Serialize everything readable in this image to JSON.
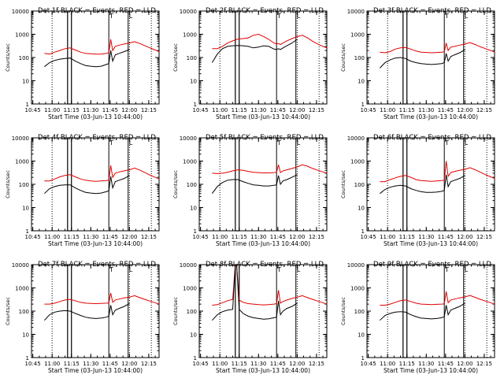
{
  "colors": {
    "events": "#000000",
    "lld": "#e00000",
    "axis": "#000000"
  },
  "chart_data": {
    "type": "line",
    "layout": "3x3 grid",
    "shared": {
      "xlabel": "Start Time (03-Jun-13 10:44:00)",
      "ylabel": "Counts/sec",
      "x_ticks": [
        "10:45",
        "11:00",
        "11:15",
        "11:30",
        "11:45",
        "12:00",
        "12:15"
      ],
      "x_tick_minutes": [
        1,
        16,
        31,
        46,
        61,
        76,
        91
      ],
      "xlim_minutes": [
        0,
        99
      ],
      "y_ticks": [
        "1",
        "10",
        "100",
        "1000",
        "10000"
      ],
      "y_scale": "log",
      "ylim": [
        1,
        10000
      ],
      "series": [
        {
          "name": "Events",
          "color": "black"
        },
        {
          "name": "LLD",
          "color": "red"
        }
      ],
      "markers": {
        "dotted_lines_minutes": [
          16,
          76,
          93
        ],
        "solid_box_minutes": [
          28,
          31
        ],
        "solid_lines_minutes": [
          60,
          75
        ],
        "flags": [
          {
            "label": "T",
            "minute": 60
          },
          {
            "label": "L",
            "minute": 75
          }
        ]
      }
    },
    "panels": [
      {
        "title": "Det 1f BLACK = Events, RED = LLD",
        "x_minutes": [
          10,
          14,
          18,
          22,
          26,
          30,
          34,
          38,
          42,
          46,
          50,
          54,
          58,
          60,
          61.5,
          63,
          65,
          68,
          72,
          76,
          80,
          84,
          88,
          92,
          96,
          99
        ],
        "events": [
          40,
          60,
          75,
          85,
          90,
          95,
          70,
          55,
          45,
          42,
          40,
          42,
          50,
          55,
          200,
          70,
          130,
          150,
          180,
          220,
          null,
          null,
          null,
          null,
          null,
          null
        ],
        "lld": [
          150,
          140,
          170,
          200,
          240,
          260,
          210,
          170,
          150,
          145,
          140,
          140,
          150,
          160,
          600,
          200,
          300,
          340,
          380,
          420,
          480,
          400,
          320,
          260,
          210,
          180
        ]
      },
      {
        "title": "Det 2f BLACK = Events, RED = LLD",
        "x_minutes": [
          10,
          14,
          18,
          22,
          26,
          30,
          34,
          38,
          42,
          46,
          50,
          54,
          58,
          60,
          61.5,
          63,
          65,
          68,
          72,
          76,
          80,
          84,
          88,
          92,
          96,
          99
        ],
        "events": [
          60,
          140,
          240,
          300,
          320,
          330,
          320,
          300,
          260,
          280,
          320,
          300,
          230,
          220,
          240,
          220,
          260,
          320,
          420,
          600,
          null,
          null,
          null,
          null,
          null,
          null
        ],
        "lld": [
          240,
          240,
          300,
          420,
          520,
          620,
          650,
          700,
          900,
          1000,
          800,
          600,
          420,
          380,
          400,
          360,
          420,
          520,
          650,
          800,
          900,
          700,
          500,
          380,
          300,
          260
        ]
      },
      {
        "title": "Det 3f BLACK = Events, RED = LLD",
        "x_minutes": [
          10,
          14,
          18,
          22,
          26,
          30,
          34,
          38,
          42,
          46,
          50,
          54,
          58,
          60,
          61.5,
          63,
          65,
          68,
          72,
          76,
          80,
          84,
          88,
          92,
          96,
          99
        ],
        "events": [
          35,
          60,
          80,
          95,
          100,
          90,
          70,
          60,
          55,
          52,
          50,
          52,
          55,
          60,
          150,
          70,
          110,
          130,
          160,
          220,
          null,
          null,
          null,
          null,
          null,
          null
        ],
        "lld": [
          170,
          160,
          180,
          230,
          260,
          270,
          230,
          190,
          170,
          165,
          160,
          165,
          170,
          175,
          420,
          200,
          280,
          300,
          340,
          380,
          440,
          360,
          290,
          240,
          200,
          170
        ]
      },
      {
        "title": "Det 4f BLACK = Events, RED = LLD",
        "x_minutes": [
          10,
          14,
          18,
          22,
          26,
          30,
          34,
          38,
          42,
          46,
          50,
          54,
          58,
          60,
          61.5,
          63,
          65,
          68,
          72,
          76,
          80,
          84,
          88,
          92,
          96,
          99
        ],
        "events": [
          40,
          65,
          80,
          90,
          95,
          95,
          70,
          55,
          45,
          42,
          40,
          42,
          48,
          52,
          220,
          70,
          130,
          150,
          180,
          240,
          null,
          null,
          null,
          null,
          null,
          null
        ],
        "lld": [
          140,
          140,
          170,
          210,
          240,
          260,
          210,
          170,
          150,
          140,
          135,
          140,
          145,
          150,
          650,
          200,
          300,
          340,
          380,
          420,
          500,
          410,
          320,
          250,
          200,
          170
        ]
      },
      {
        "title": "Det 5f BLACK = Events, RED = LLD",
        "x_minutes": [
          10,
          14,
          18,
          22,
          26,
          30,
          34,
          38,
          42,
          46,
          50,
          54,
          58,
          60,
          61.5,
          63,
          65,
          68,
          72,
          76,
          80,
          84,
          88,
          92,
          96,
          99
        ],
        "events": [
          40,
          80,
          120,
          150,
          160,
          160,
          130,
          110,
          95,
          90,
          85,
          85,
          90,
          95,
          240,
          100,
          140,
          160,
          200,
          260,
          null,
          null,
          null,
          null,
          null,
          null
        ],
        "lld": [
          300,
          290,
          300,
          330,
          380,
          420,
          400,
          360,
          330,
          320,
          310,
          310,
          320,
          330,
          700,
          320,
          380,
          420,
          480,
          560,
          700,
          600,
          480,
          400,
          340,
          300
        ]
      },
      {
        "title": "Det 6f BLACK = Events, RED = LLD",
        "x_minutes": [
          10,
          14,
          18,
          22,
          26,
          30,
          34,
          38,
          42,
          46,
          50,
          54,
          58,
          60,
          61.5,
          63,
          65,
          68,
          72,
          76,
          80,
          84,
          88,
          92,
          96,
          99
        ],
        "events": [
          40,
          60,
          75,
          85,
          90,
          85,
          65,
          55,
          48,
          45,
          45,
          46,
          50,
          55,
          260,
          80,
          130,
          150,
          180,
          240,
          null,
          null,
          null,
          null,
          null,
          null
        ],
        "lld": [
          130,
          130,
          160,
          190,
          220,
          240,
          200,
          160,
          145,
          140,
          135,
          140,
          145,
          150,
          1000,
          220,
          320,
          360,
          400,
          440,
          520,
          420,
          330,
          260,
          210,
          180
        ]
      },
      {
        "title": "Det 7f BLACK = Events, RED = LLD",
        "x_minutes": [
          10,
          14,
          18,
          22,
          26,
          30,
          34,
          38,
          42,
          46,
          50,
          54,
          58,
          60,
          61.5,
          63,
          65,
          68,
          72,
          76,
          80,
          84,
          88,
          92,
          96,
          99
        ],
        "events": [
          40,
          70,
          90,
          100,
          105,
          100,
          80,
          65,
          55,
          50,
          48,
          50,
          55,
          60,
          180,
          70,
          110,
          130,
          160,
          210,
          null,
          null,
          null,
          null,
          null,
          null
        ],
        "lld": [
          200,
          200,
          220,
          260,
          300,
          320,
          280,
          240,
          220,
          215,
          210,
          215,
          220,
          225,
          600,
          240,
          300,
          330,
          370,
          400,
          460,
          380,
          320,
          270,
          230,
          200
        ]
      },
      {
        "title": "Det 8f BLACK = Events, RED = LLD",
        "x_minutes": [
          10,
          14,
          18,
          22,
          26,
          28,
          29,
          31,
          34,
          38,
          42,
          46,
          50,
          54,
          58,
          60,
          61.5,
          63,
          65,
          68,
          72,
          76,
          80,
          84,
          88,
          92,
          96,
          99
        ],
        "events": [
          40,
          70,
          95,
          110,
          120,
          10000,
          10000,
          120,
          80,
          60,
          52,
          48,
          45,
          47,
          52,
          55,
          280,
          70,
          100,
          130,
          160,
          220,
          null,
          null,
          null,
          null,
          null,
          null
        ],
        "lld": [
          180,
          190,
          230,
          280,
          320,
          10000,
          10000,
          300,
          240,
          210,
          200,
          190,
          185,
          190,
          200,
          210,
          800,
          220,
          260,
          300,
          350,
          400,
          460,
          380,
          320,
          270,
          230,
          200
        ]
      },
      {
        "title": "Det 9f BLACK = Events, RED = LLD",
        "x_minutes": [
          10,
          14,
          18,
          22,
          26,
          30,
          34,
          38,
          42,
          46,
          50,
          54,
          58,
          60,
          61.5,
          63,
          65,
          68,
          72,
          76,
          80,
          84,
          88,
          92,
          96,
          99
        ],
        "events": [
          40,
          65,
          80,
          90,
          95,
          90,
          70,
          58,
          50,
          48,
          46,
          48,
          52,
          58,
          180,
          70,
          110,
          130,
          160,
          220,
          null,
          null,
          null,
          null,
          null,
          null
        ],
        "lld": [
          180,
          180,
          200,
          240,
          280,
          300,
          260,
          220,
          200,
          195,
          190,
          195,
          200,
          205,
          700,
          230,
          300,
          330,
          370,
          410,
          470,
          390,
          320,
          270,
          230,
          200
        ]
      }
    ]
  }
}
